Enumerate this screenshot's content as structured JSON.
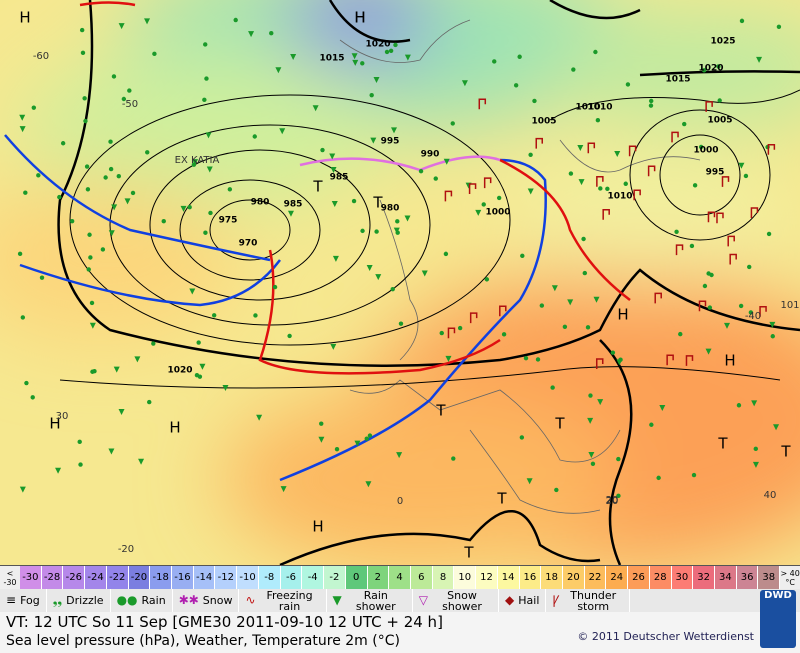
{
  "map": {
    "labels": [
      "H",
      "H",
      "1020",
      "1015",
      "1025",
      "1020",
      "1015",
      "1010",
      "1005",
      "1010",
      "1005",
      "1000",
      "995",
      "995",
      "990",
      "985",
      "980",
      "975",
      "970",
      "980",
      "985",
      "1000",
      "1010",
      "1020",
      "T",
      "T",
      "T",
      "T",
      "T",
      "T",
      "T",
      "T",
      "H",
      "H",
      "H",
      "H",
      "H",
      "H",
      "EX KATIA",
      "-60",
      "-50",
      "-40",
      "30",
      "20",
      "0",
      "-20",
      "40",
      "20",
      "101"
    ]
  },
  "scale": {
    "low_label": "< -30",
    "high_label": "> 40 °C",
    "values": [
      -30,
      -28,
      -26,
      -24,
      -22,
      -20,
      -18,
      -16,
      -14,
      -12,
      -10,
      -8,
      -6,
      -4,
      -2,
      0,
      2,
      4,
      6,
      8,
      10,
      12,
      14,
      16,
      18,
      20,
      22,
      24,
      26,
      28,
      30,
      32,
      34,
      36,
      38
    ],
    "colors": [
      "#d08ee8",
      "#c38ae8",
      "#b688ea",
      "#a386ea",
      "#9284ea",
      "#7a7ee0",
      "#8a9cee",
      "#98aef2",
      "#a6c0f8",
      "#b4d0fc",
      "#c0defe",
      "#b0ecfc",
      "#a6f0ec",
      "#b0f6e0",
      "#c2f6d0",
      "#5ec87a",
      "#7ed47c",
      "#9ee088",
      "#bcea98",
      "#d8f4b4",
      "#fcfcdc",
      "#fcfcc0",
      "#fcf8a0",
      "#fcec88",
      "#fcdc78",
      "#fccc68",
      "#fcbc5c",
      "#fcac50",
      "#fc9c58",
      "#fc8c64",
      "#fc7c74",
      "#ec6c7c",
      "#dc7888",
      "#cc8494",
      "#bc8c8c"
    ]
  },
  "legend": [
    "Fog",
    "Drizzle",
    "Rain",
    "Snow",
    "Freezing rain",
    "Rain shower",
    "Snow shower",
    "Hail",
    "Thunder storm"
  ],
  "footer": {
    "valid_time": "VT: 12 UTC So  11 Sep [GME30 2011-09-10  12 UTC + 24 h]",
    "subtitle": "Sea level pressure (hPa), Weather, Temperature 2m (°C)",
    "copyright": "© 2011 Deutscher Wetterdienst",
    "logo": "DWD"
  }
}
